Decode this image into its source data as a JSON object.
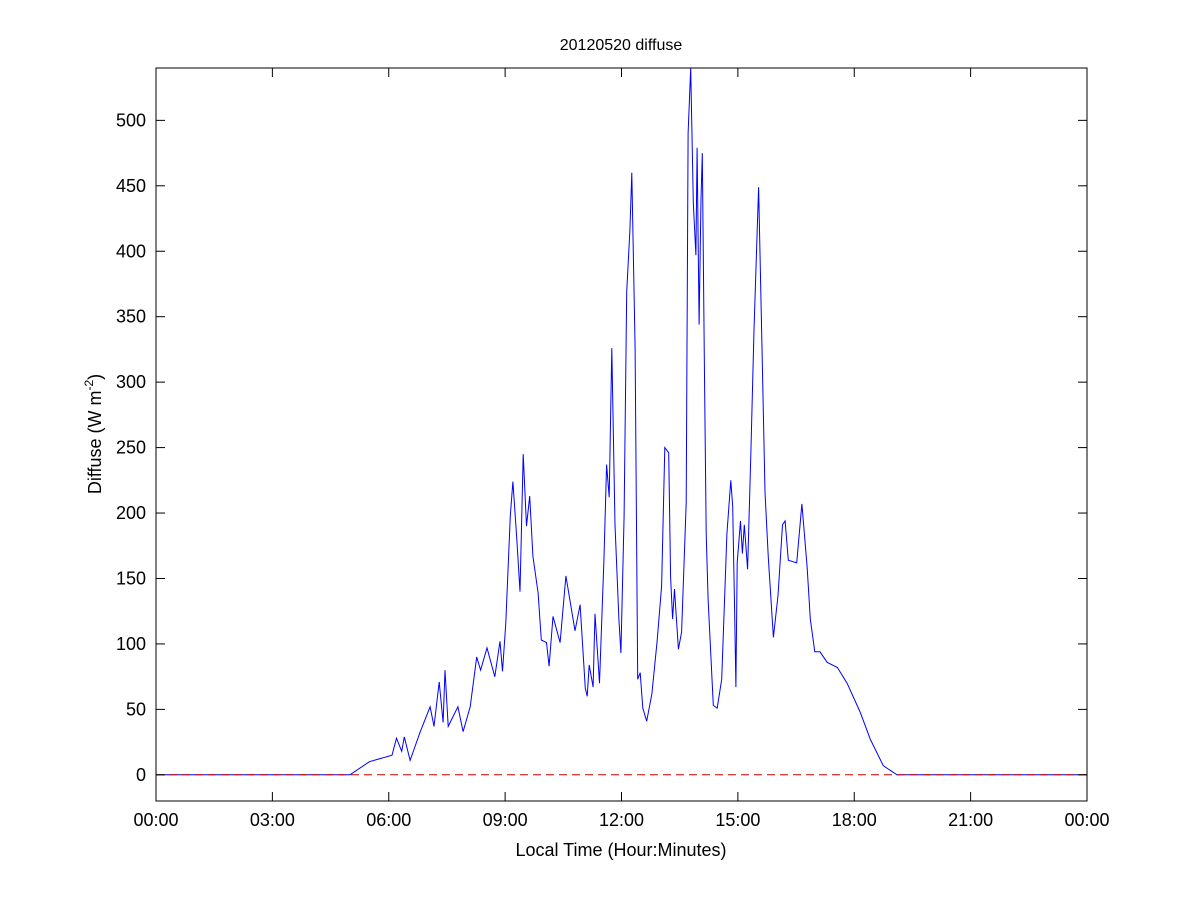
{
  "chart_data": {
    "type": "line",
    "title": "20120520 diffuse",
    "xlabel": "Local Time (Hour:Minutes)",
    "ylabel": "Diffuse (W m",
    "ylabel_superscript": "-2",
    "ylabel_suffix": ")",
    "xlim": [
      "00:00",
      "24:00"
    ],
    "ylim": [
      -20,
      540
    ],
    "x_ticks": [
      "00:00",
      "03:00",
      "06:00",
      "09:00",
      "12:00",
      "15:00",
      "18:00",
      "21:00",
      "00:00"
    ],
    "y_ticks": [
      0,
      50,
      100,
      150,
      200,
      250,
      300,
      350,
      400,
      450,
      500
    ],
    "grid": false,
    "series": [
      {
        "color": "#0000ff",
        "style": "solid",
        "points": [
          [
            "00:00",
            0
          ],
          [
            "05:00",
            0
          ],
          [
            "05:30",
            10
          ],
          [
            "06:05",
            15
          ],
          [
            "06:12",
            28
          ],
          [
            "06:20",
            18
          ],
          [
            "06:24",
            29
          ],
          [
            "06:33",
            11
          ],
          [
            "06:48",
            32
          ],
          [
            "07:04",
            52
          ],
          [
            "07:10",
            37
          ],
          [
            "07:18",
            71
          ],
          [
            "07:24",
            40
          ],
          [
            "07:27",
            80
          ],
          [
            "07:32",
            37
          ],
          [
            "07:47",
            52
          ],
          [
            "07:55",
            33
          ],
          [
            "08:06",
            52
          ],
          [
            "08:16",
            90
          ],
          [
            "08:22",
            80
          ],
          [
            "08:32",
            97
          ],
          [
            "08:44",
            75
          ],
          [
            "08:52",
            102
          ],
          [
            "08:56",
            79
          ],
          [
            "09:01",
            116
          ],
          [
            "09:08",
            198
          ],
          [
            "09:12",
            224
          ],
          [
            "09:18",
            180
          ],
          [
            "09:23",
            140
          ],
          [
            "09:28",
            245
          ],
          [
            "09:33",
            190
          ],
          [
            "09:38",
            213
          ],
          [
            "09:43",
            167
          ],
          [
            "09:51",
            139
          ],
          [
            "09:56",
            103
          ],
          [
            "10:04",
            101
          ],
          [
            "10:08",
            83
          ],
          [
            "10:14",
            121
          ],
          [
            "10:25",
            101
          ],
          [
            "10:34",
            152
          ],
          [
            "10:40",
            134
          ],
          [
            "10:48",
            110
          ],
          [
            "10:56",
            130
          ],
          [
            "11:04",
            66
          ],
          [
            "11:07",
            60
          ],
          [
            "11:10",
            84
          ],
          [
            "11:16",
            67
          ],
          [
            "11:19",
            123
          ],
          [
            "11:26",
            70
          ],
          [
            "11:33",
            166
          ],
          [
            "11:37",
            237
          ],
          [
            "11:41",
            212
          ],
          [
            "11:45",
            326
          ],
          [
            "11:50",
            191
          ],
          [
            "11:56",
            119
          ],
          [
            "11:59",
            93
          ],
          [
            "12:04",
            198
          ],
          [
            "12:08",
            369
          ],
          [
            "12:13",
            416
          ],
          [
            "12:16",
            460
          ],
          [
            "12:21",
            326
          ],
          [
            "12:25",
            73
          ],
          [
            "12:29",
            78
          ],
          [
            "12:33",
            51
          ],
          [
            "12:39",
            41
          ],
          [
            "12:47",
            62
          ],
          [
            "12:55",
            102
          ],
          [
            "13:02",
            144
          ],
          [
            "13:07",
            250
          ],
          [
            "13:13",
            246
          ],
          [
            "13:16",
            151
          ],
          [
            "13:19",
            119
          ],
          [
            "13:22",
            142
          ],
          [
            "13:28",
            96
          ],
          [
            "13:33",
            109
          ],
          [
            "13:40",
            208
          ],
          [
            "13:43",
            490
          ],
          [
            "13:47",
            540
          ],
          [
            "13:51",
            437
          ],
          [
            "13:55",
            397
          ],
          [
            "13:57",
            479
          ],
          [
            "14:00",
            344
          ],
          [
            "14:03",
            440
          ],
          [
            "14:05",
            475
          ],
          [
            "14:08",
            319
          ],
          [
            "14:11",
            184
          ],
          [
            "14:14",
            134
          ],
          [
            "14:22",
            53
          ],
          [
            "14:28",
            51
          ],
          [
            "14:35",
            73
          ],
          [
            "14:43",
            184
          ],
          [
            "14:49",
            225
          ],
          [
            "14:52",
            205
          ],
          [
            "14:55",
            126
          ],
          [
            "14:57",
            67
          ],
          [
            "14:59",
            162
          ],
          [
            "15:04",
            194
          ],
          [
            "15:07",
            169
          ],
          [
            "15:10",
            191
          ],
          [
            "15:15",
            157
          ],
          [
            "15:20",
            244
          ],
          [
            "15:25",
            340
          ],
          [
            "15:32",
            449
          ],
          [
            "15:37",
            333
          ],
          [
            "15:42",
            216
          ],
          [
            "15:47",
            166
          ],
          [
            "15:55",
            105
          ],
          [
            "16:02",
            137
          ],
          [
            "16:09",
            191
          ],
          [
            "16:13",
            194
          ],
          [
            "16:18",
            164
          ],
          [
            "16:31",
            162
          ],
          [
            "16:39",
            207
          ],
          [
            "16:47",
            159
          ],
          [
            "16:52",
            119
          ],
          [
            "16:59",
            94
          ],
          [
            "17:07",
            94
          ],
          [
            "17:18",
            86
          ],
          [
            "17:34",
            82
          ],
          [
            "17:49",
            70
          ],
          [
            "18:09",
            48
          ],
          [
            "18:25",
            27
          ],
          [
            "18:45",
            7
          ],
          [
            "19:06",
            0
          ],
          [
            "24:00",
            0
          ]
        ]
      },
      {
        "color": "#cc0000",
        "style": "dashed",
        "points": [
          [
            "00:00",
            0
          ],
          [
            "24:00",
            0
          ]
        ]
      }
    ]
  }
}
